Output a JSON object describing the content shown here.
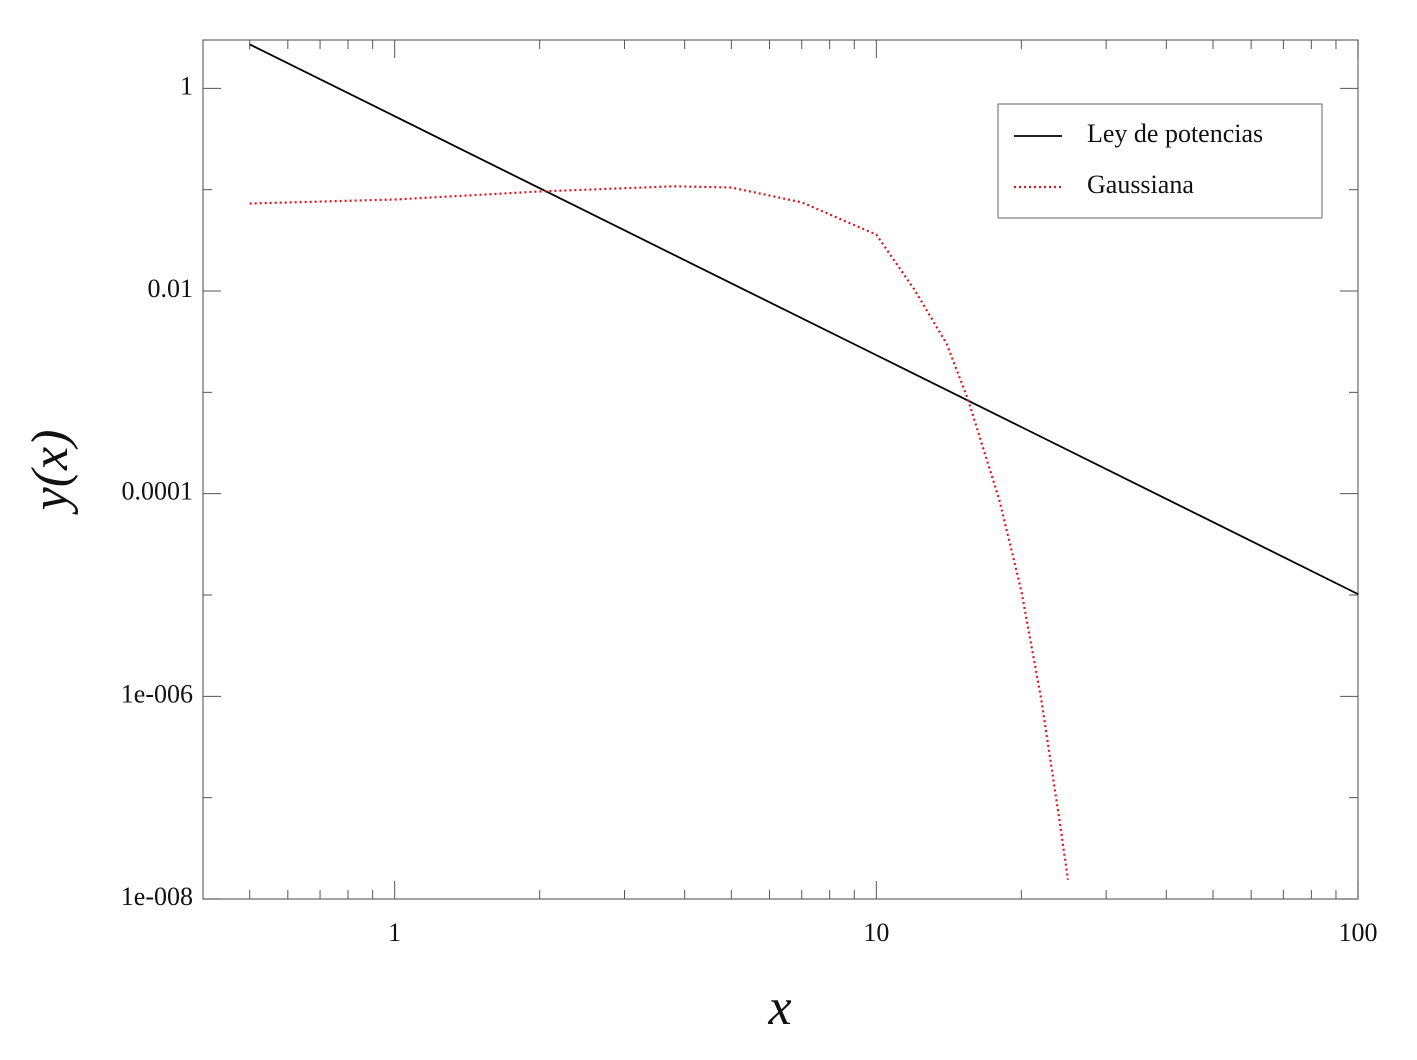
{
  "chart_data": {
    "type": "line",
    "xlabel": "x",
    "ylabel": "y(x)",
    "xscale": "log",
    "yscale": "log",
    "xlim": [
      0.4,
      100
    ],
    "ylim": [
      1e-08,
      3
    ],
    "xticks": [
      1,
      10,
      100
    ],
    "xminorticks": [
      0.5,
      0.6,
      0.7,
      0.8,
      0.9,
      2,
      3,
      4,
      5,
      6,
      7,
      8,
      9,
      20,
      30,
      40,
      50,
      60,
      70,
      80,
      90
    ],
    "yticks": [
      {
        "value": 1e-08,
        "label": "1e-008"
      },
      {
        "value": 1e-06,
        "label": "1e-006"
      },
      0.0001,
      0.01,
      1
    ],
    "yminorticks": [
      1e-07,
      1e-05,
      0.001,
      0.1
    ],
    "legend": "upper right",
    "series": [
      {
        "name": "Ley de potencias",
        "color": "#000000",
        "style": "solid",
        "x": [
          0.5,
          1,
          2,
          5,
          10,
          20,
          50,
          100
        ],
        "values": [
          2.72,
          0.531,
          0.1035,
          0.0119,
          0.00233,
          0.000455,
          5.24e-05,
          1.02e-05
        ]
      },
      {
        "name": "Gaussiana",
        "color": "#e0141e",
        "style": "dotted",
        "x": [
          0.5,
          1,
          2,
          3.8,
          5,
          7,
          10,
          12,
          14,
          15.5,
          18,
          20,
          22,
          24,
          25
        ],
        "values": [
          0.073,
          0.08,
          0.096,
          0.108,
          0.105,
          0.075,
          0.036,
          0.0103,
          0.003,
          0.00085,
          8.7e-05,
          1.1e-05,
          9.3e-07,
          6e-08,
          1.55e-08
        ]
      }
    ]
  }
}
